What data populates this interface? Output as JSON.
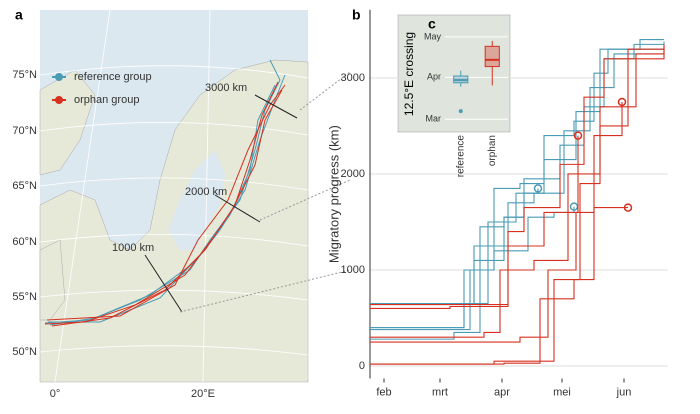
{
  "chart_data": [
    {
      "type": "map",
      "panel": "a",
      "lat_labels": [
        "75°N",
        "70°N",
        "65°N",
        "60°N",
        "55°N",
        "50°N"
      ],
      "lon_labels": [
        "0°",
        "20°E"
      ],
      "series": [
        {
          "name": "reference group",
          "color": "#4a9bb5"
        },
        {
          "name": "orphan group",
          "color": "#d7301f"
        }
      ],
      "annotations": [
        "1000 km",
        "2000 km",
        "3000 km"
      ]
    },
    {
      "type": "step",
      "panel": "b",
      "ylabel": "Migratory progress (km)",
      "xlim": [
        -7,
        142
      ],
      "xticks": [
        {
          "value": 0,
          "label": "feb"
        },
        {
          "value": 28,
          "label": "mrt"
        },
        {
          "value": 59,
          "label": "apr"
        },
        {
          "value": 89,
          "label": "mei"
        },
        {
          "value": 120,
          "label": "jun"
        }
      ],
      "ylim": [
        -130,
        3710
      ],
      "yticks": [
        0,
        1000,
        2000,
        3000
      ],
      "grid": true,
      "series": [
        {
          "color": "#4a9bb5",
          "x": [
            -7,
            10,
            43,
            55,
            68,
            80,
            95,
            105,
            112,
            140
          ],
          "values": [
            380,
            380,
            1000,
            1850,
            1900,
            2400,
            2550,
            3050,
            3300,
            3300
          ]
        },
        {
          "color": "#4a9bb5",
          "x": [
            -7,
            35,
            48,
            60,
            70,
            88,
            100,
            110,
            125,
            140
          ],
          "values": [
            280,
            350,
            1450,
            1550,
            1950,
            2300,
            2700,
            3200,
            3350,
            3380
          ]
        },
        {
          "color": "#4a9bb5",
          "x": [
            -7,
            25,
            45,
            62,
            75,
            90,
            103,
            115,
            140
          ],
          "values": [
            650,
            650,
            1250,
            1700,
            1800,
            2450,
            2900,
            3250,
            3300
          ]
        },
        {
          "color": "#4a9bb5",
          "x": [
            -7,
            40,
            52,
            66,
            80,
            96,
            108,
            128,
            140
          ],
          "values": [
            400,
            650,
            1500,
            1800,
            2150,
            2650,
            3300,
            3400,
            3400
          ]
        },
        {
          "color": "#4a9bb5",
          "x": [
            -7,
            45,
            60,
            70,
            77
          ],
          "values": [
            650,
            1100,
            1550,
            1800,
            1850
          ]
        },
        {
          "color": "#4a9bb5",
          "x": [
            -7,
            40,
            55,
            72,
            85,
            95
          ],
          "values": [
            400,
            1000,
            1200,
            1550,
            1600,
            1660
          ]
        },
        {
          "color": "#d7301f",
          "x": [
            -7,
            30,
            62,
            70,
            88,
            100,
            110,
            140
          ],
          "values": [
            640,
            640,
            1400,
            1650,
            2100,
            2800,
            3200,
            3300
          ]
        },
        {
          "color": "#d7301f",
          "x": [
            -7,
            50,
            58,
            75,
            92,
            108,
            122,
            140
          ],
          "values": [
            300,
            350,
            1000,
            1100,
            2000,
            2500,
            3300,
            3320
          ]
        },
        {
          "color": "#d7301f",
          "x": [
            -7,
            55,
            85,
            98,
            108,
            126,
            140
          ],
          "values": [
            20,
            50,
            900,
            1900,
            2700,
            3250,
            3350
          ]
        },
        {
          "color": "#d7301f",
          "x": [
            -7,
            60,
            78,
            95,
            105,
            122
          ],
          "values": [
            20,
            30,
            700,
            900,
            1650,
            1650
          ]
        },
        {
          "color": "#d7301f",
          "x": [
            -7,
            68,
            82,
            96,
            105,
            119
          ],
          "values": [
            250,
            300,
            1000,
            1600,
            2400,
            2750
          ]
        },
        {
          "color": "#d7301f",
          "x": [
            -7,
            33,
            62,
            80,
            97
          ],
          "values": [
            600,
            620,
            1250,
            1600,
            2400
          ]
        }
      ]
    },
    {
      "type": "box",
      "panel": "c",
      "ylabel": "12.5°E crossing",
      "categories": [
        "reference",
        "orphan"
      ],
      "ylim": [
        20,
        103
      ],
      "yticks": [
        {
          "value": 28,
          "label": "Mar"
        },
        {
          "value": 59,
          "label": "Apr"
        },
        {
          "value": 89,
          "label": "May"
        }
      ],
      "boxes": [
        {
          "color": "#4a9bb5",
          "min": 52,
          "q1": 55,
          "median": 57,
          "q3": 60,
          "max": 64,
          "outliers": [
            34
          ]
        },
        {
          "color": "#d7301f",
          "min": 53,
          "q1": 67,
          "median": 72,
          "q3": 82,
          "max": 86,
          "outliers": []
        }
      ]
    }
  ]
}
